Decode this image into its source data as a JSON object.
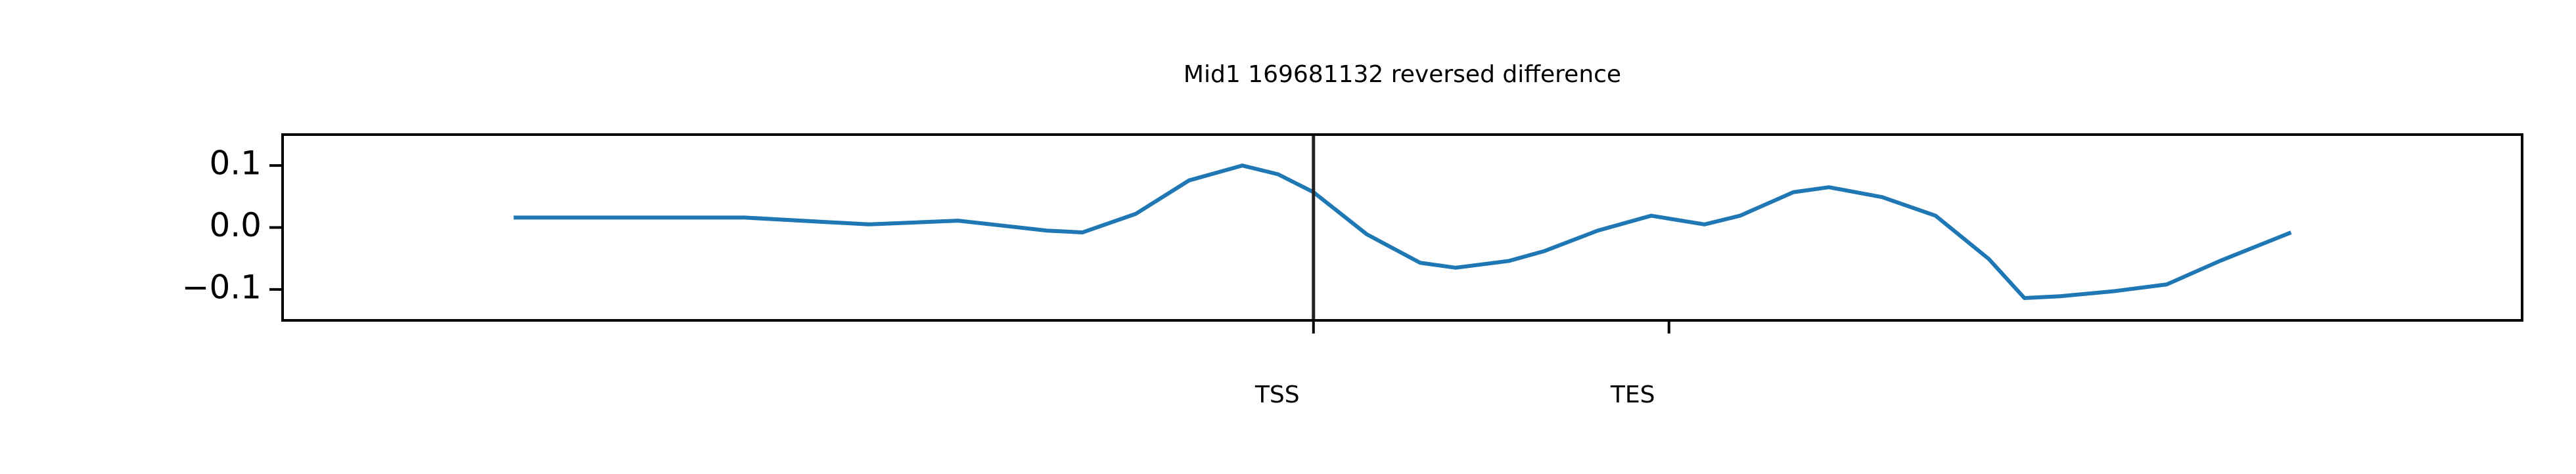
{
  "chart_data": {
    "type": "line",
    "title": "Mid1 169681132 reversed difference",
    "x": [
      0,
      5,
      10,
      13,
      20,
      25,
      30,
      32,
      35,
      38,
      41,
      43,
      45,
      48,
      51,
      53,
      56,
      58,
      61,
      64,
      67,
      69,
      72,
      74,
      77,
      80,
      83,
      85,
      87,
      90,
      93,
      96,
      100
    ],
    "series": [
      {
        "color": "#1f77b4",
        "values": [
          0.016,
          0.016,
          0.016,
          0.016,
          0.005,
          0.011,
          -0.005,
          -0.008,
          0.022,
          0.076,
          0.1,
          0.086,
          0.057,
          -0.011,
          -0.057,
          -0.065,
          -0.054,
          -0.038,
          -0.005,
          0.019,
          0.005,
          0.019,
          0.057,
          0.065,
          0.049,
          0.019,
          -0.051,
          -0.114,
          -0.111,
          -0.103,
          -0.092,
          -0.054,
          -0.008
        ]
      }
    ],
    "xlim": [
      -13,
      113
    ],
    "xticks": [
      {
        "value": 45,
        "label": "TSS"
      },
      {
        "value": 65,
        "label": "TES"
      }
    ],
    "ylim": [
      -0.15,
      0.15
    ],
    "yticks": [
      {
        "value": -0.1,
        "label": "−0.1"
      },
      {
        "value": 0,
        "label": "0.0"
      },
      0.1
    ],
    "vline": 45
  }
}
